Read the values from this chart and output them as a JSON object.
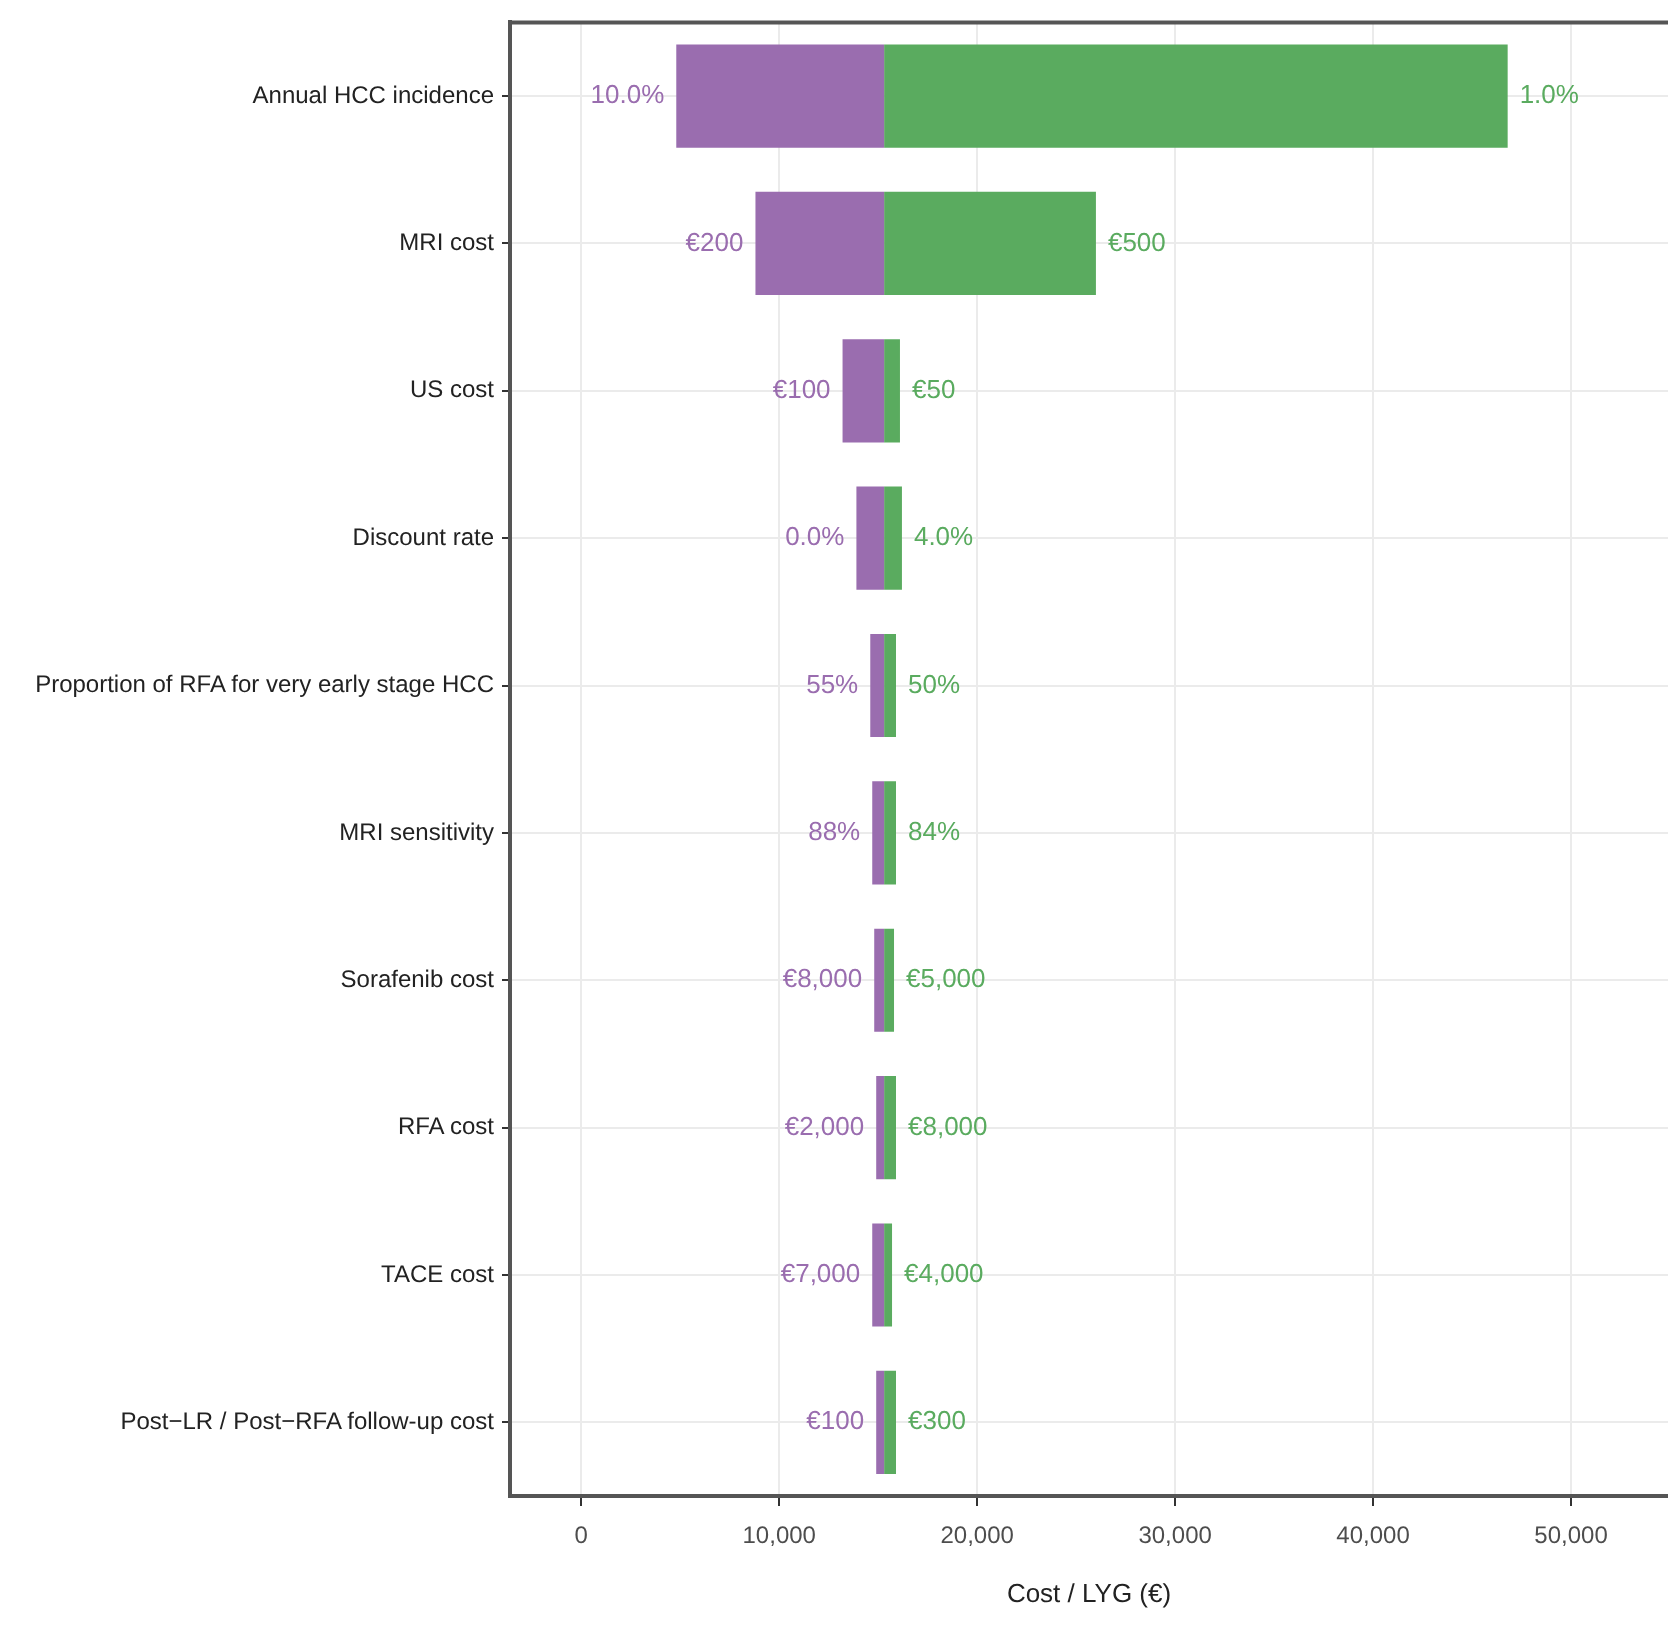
{
  "chart_data": {
    "type": "bar",
    "orientation": "horizontal",
    "xlabel": "Cost / LYG (€)",
    "categories": [
      "Annual HCC incidence",
      "MRI cost",
      "US cost",
      "Discount rate",
      "Proportion of RFA for very early stage HCC",
      "MRI sensitivity",
      "Sorafenib cost",
      "RFA cost",
      "TACE cost",
      "Post−LR / Post−RFA follow-up cost"
    ],
    "series": [
      {
        "color": "#9a6daf",
        "base": [
          15300,
          15300,
          15300,
          15300,
          15300,
          15300,
          15300,
          15300,
          15300,
          15300
        ],
        "values": [
          -10500,
          -6500,
          -2100,
          -1400,
          -700,
          -600,
          -500,
          -400,
          -600,
          -400
        ]
      },
      {
        "color": "#5aab5f",
        "base": [
          15300,
          15300,
          15300,
          15300,
          15300,
          15300,
          15300,
          15300,
          15300,
          15300
        ],
        "values": [
          31500,
          10700,
          800,
          900,
          600,
          600,
          500,
          600,
          400,
          600
        ]
      }
    ],
    "annotations": [
      {
        "text": "10.0%",
        "x": 4800,
        "y": "Annual HCC incidence"
      },
      {
        "text": "€200",
        "x": 8800,
        "y": "MRI cost"
      },
      {
        "text": "€100",
        "x": 13200,
        "y": "US cost"
      },
      {
        "text": "0.0%",
        "x": 13900,
        "y": "Discount rate"
      },
      {
        "text": "55%",
        "x": 14600,
        "y": "Proportion of RFA for very early stage HCC"
      },
      {
        "text": "88%",
        "x": 14700,
        "y": "MRI sensitivity"
      },
      {
        "text": "€8,000",
        "x": 14800,
        "y": "Sorafenib cost"
      },
      {
        "text": "€2,000",
        "x": 14900,
        "y": "RFA cost"
      },
      {
        "text": "€7,000",
        "x": 14700,
        "y": "TACE cost"
      },
      {
        "text": "€100",
        "x": 14900,
        "y": "Post−LR / Post−RFA follow-up cost"
      },
      {
        "text": "1.0%",
        "x": 46800,
        "y": "Annual HCC incidence"
      },
      {
        "text": "€500",
        "x": 26000,
        "y": "MRI cost"
      },
      {
        "text": "€50",
        "x": 16100,
        "y": "US cost"
      },
      {
        "text": "4.0%",
        "x": 16200,
        "y": "Discount rate"
      },
      {
        "text": "50%",
        "x": 15900,
        "y": "Proportion of RFA for very early stage HCC"
      },
      {
        "text": "84%",
        "x": 15900,
        "y": "MRI sensitivity"
      },
      {
        "text": "€5,000",
        "x": 15800,
        "y": "Sorafenib cost"
      },
      {
        "text": "€8,000",
        "x": 15900,
        "y": "RFA cost"
      },
      {
        "text": "€4,000",
        "x": 15700,
        "y": "TACE cost"
      },
      {
        "text": "€300",
        "x": 15900,
        "y": "Post−LR / Post−RFA follow-up cost"
      }
    ],
    "xlim": [
      -3600,
      54900
    ],
    "xticks": [
      {
        "value": 0,
        "label": "0"
      },
      {
        "value": 10000,
        "label": "10,000"
      },
      {
        "value": 20000,
        "label": "20,000"
      },
      {
        "value": 30000,
        "label": "30,000"
      },
      {
        "value": 40000,
        "label": "40,000"
      },
      {
        "value": 50000,
        "label": "50,000"
      }
    ],
    "grid": true
  }
}
